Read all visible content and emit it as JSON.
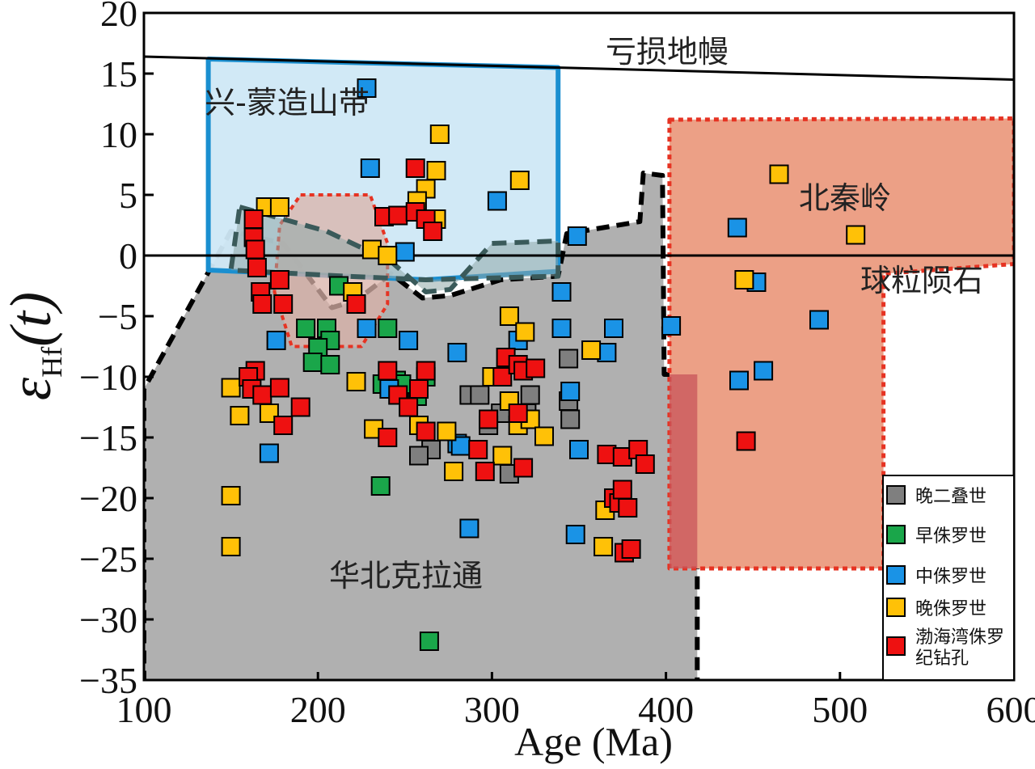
{
  "chart_data": {
    "type": "scatter",
    "xlabel": "Age (Ma)",
    "ylabel_symbol": "ε",
    "ylabel_subscript": "Hf",
    "ylabel_suffix": "(t)",
    "xlim": [
      100,
      600
    ],
    "ylim": [
      -35,
      20
    ],
    "xticks": [
      "100",
      "200",
      "300",
      "400",
      "500",
      "600"
    ],
    "yticks": [
      "20",
      "15",
      "10",
      "5",
      "0",
      "-5",
      "-10",
      "-15",
      "-20",
      "-25",
      "-30",
      "-35"
    ],
    "reference_lines": [
      {
        "label": "亏损地幔",
        "x": [
          100,
          600
        ],
        "y": [
          16.4,
          14.5
        ]
      },
      {
        "label": "球粒陨石",
        "x": [
          100,
          600
        ],
        "y": [
          0,
          0
        ]
      }
    ],
    "regions": [
      {
        "label": "华北克拉通",
        "color": "#b0b0b0",
        "border": "#000000",
        "polygon": [
          [
            100,
            -35.3
          ],
          [
            100,
            -11
          ],
          [
            150,
            2
          ],
          [
            180,
            1
          ],
          [
            208,
            -4.3
          ],
          [
            222,
            -3.7
          ],
          [
            242,
            -1.5
          ],
          [
            260,
            -3.5
          ],
          [
            276,
            -3.3
          ],
          [
            305,
            -2
          ],
          [
            338,
            -1.7
          ],
          [
            343,
            1.8
          ],
          [
            385,
            2.8
          ],
          [
            387,
            6.8
          ],
          [
            398,
            6.6
          ],
          [
            399,
            -9.8
          ],
          [
            418,
            -9.8
          ],
          [
            418,
            -35.3
          ]
        ]
      },
      {
        "label": "兴-蒙造山带",
        "color": "#cfe8f5",
        "border": "#1a8fd0",
        "polygon": [
          [
            137,
            16.2
          ],
          [
            338,
            15.5
          ],
          [
            338,
            -1.3
          ],
          [
            262,
            -2
          ],
          [
            215,
            -1.7
          ],
          [
            137,
            -1.2
          ]
        ]
      },
      {
        "label": "北秦岭",
        "color": "#eca086",
        "border": "#e63323",
        "polygon": [
          [
            402,
            11.2
          ],
          [
            600,
            11.3
          ],
          [
            600,
            -0.7
          ],
          [
            525,
            -1.5
          ],
          [
            525,
            -25.8
          ],
          [
            402,
            -25.8
          ]
        ]
      },
      {
        "label": "",
        "color": "#d9b2a8",
        "border": "#e63323",
        "polygon": [
          [
            190,
            5
          ],
          [
            230,
            5
          ],
          [
            240,
            1
          ],
          [
            240,
            -4
          ],
          [
            225,
            -7.5
          ],
          [
            185,
            -7.5
          ],
          [
            175,
            -3
          ],
          [
            178,
            2.5
          ]
        ]
      },
      {
        "label": "",
        "color": "#8fa8a8",
        "border": "#3a5a5a",
        "polygon": [
          [
            155,
            4
          ],
          [
            205,
            2
          ],
          [
            242,
            -0.5
          ],
          [
            262,
            -3
          ],
          [
            276,
            -2.8
          ],
          [
            300,
            1
          ],
          [
            338,
            1.2
          ],
          [
            338,
            -1.7
          ],
          [
            262,
            -2
          ],
          [
            215,
            -1.7
          ],
          [
            150,
            -1.2
          ]
        ]
      }
    ],
    "series": [
      {
        "name": "晚二叠世",
        "color": "#7f7f7f",
        "points": [
          [
            287,
            -11.5
          ],
          [
            293,
            -11.5
          ],
          [
            310,
            -12
          ],
          [
            320,
            -13
          ],
          [
            322,
            -11.5
          ],
          [
            265,
            -16
          ],
          [
            258,
            -16.5
          ],
          [
            344,
            -8.5
          ],
          [
            344,
            -12
          ],
          [
            345,
            -13.5
          ],
          [
            305,
            -13
          ],
          [
            310,
            -18
          ],
          [
            298,
            -14
          ]
        ]
      },
      {
        "name": "早侏罗世",
        "color": "#1aa64a",
        "points": [
          [
            212,
            -2.5
          ],
          [
            193,
            -6
          ],
          [
            205,
            -6
          ],
          [
            207,
            -7
          ],
          [
            200,
            -7.6
          ],
          [
            197,
            -8.8
          ],
          [
            207,
            -9
          ],
          [
            240,
            -6
          ],
          [
            237,
            -10.6
          ],
          [
            245,
            -10.3
          ],
          [
            252,
            -11
          ],
          [
            257,
            -11.6
          ],
          [
            262,
            -10
          ],
          [
            248,
            -10.6
          ],
          [
            236,
            -19
          ],
          [
            264,
            -31.8
          ]
        ]
      },
      {
        "name": "中侏罗世",
        "color": "#1a93e6",
        "points": [
          [
            228,
            13.8
          ],
          [
            230,
            7.2
          ],
          [
            250,
            0.3
          ],
          [
            303,
            4.5
          ],
          [
            349,
            1.6
          ],
          [
            340,
            -3
          ],
          [
            176,
            -7
          ],
          [
            228,
            -6
          ],
          [
            252,
            -7
          ],
          [
            280,
            -8
          ],
          [
            315,
            -7
          ],
          [
            340,
            -6
          ],
          [
            366,
            -8
          ],
          [
            370,
            -6
          ],
          [
            241,
            -11
          ],
          [
            280,
            -15.5
          ],
          [
            345,
            -11.2
          ],
          [
            350,
            -16
          ],
          [
            348,
            -23
          ],
          [
            403,
            -5.8
          ],
          [
            441,
            2.3
          ],
          [
            452,
            -2.2
          ],
          [
            488,
            -5.3
          ],
          [
            456,
            -9.5
          ],
          [
            442,
            -10.3
          ],
          [
            172,
            -16.3
          ],
          [
            287,
            -22.5
          ],
          [
            282,
            -15.7
          ]
        ]
      },
      {
        "name": "晚侏罗世",
        "color": "#ffc107",
        "points": [
          [
            270,
            10
          ],
          [
            268,
            7
          ],
          [
            262,
            5.5
          ],
          [
            257,
            4.5
          ],
          [
            316,
            6.2
          ],
          [
            170,
            4
          ],
          [
            178,
            4
          ],
          [
            231,
            0.5
          ],
          [
            220,
            -3
          ],
          [
            240,
            0
          ],
          [
            268,
            3
          ],
          [
            310,
            -5
          ],
          [
            319,
            -6.3
          ],
          [
            357,
            -7.8
          ],
          [
            150,
            -10.9
          ],
          [
            155,
            -13.2
          ],
          [
            172,
            -13
          ],
          [
            222,
            -10.4
          ],
          [
            232,
            -14.3
          ],
          [
            258,
            -14
          ],
          [
            274,
            -14.5
          ],
          [
            278,
            -17.8
          ],
          [
            300,
            -10
          ],
          [
            310,
            -12
          ],
          [
            315,
            -14
          ],
          [
            322,
            -13.5
          ],
          [
            330,
            -14.9
          ],
          [
            150,
            -19.8
          ],
          [
            150,
            -24
          ],
          [
            306,
            -16.5
          ],
          [
            365,
            -21
          ],
          [
            364,
            -24
          ],
          [
            465,
            6.7
          ],
          [
            445,
            -2
          ],
          [
            509,
            1.7
          ]
        ]
      },
      {
        "name": "渤海湾侏罗纪钻孔",
        "color": "#ee1111",
        "points": [
          [
            256,
            7.2
          ],
          [
            163,
            3
          ],
          [
            163,
            1.5
          ],
          [
            164,
            0.5
          ],
          [
            165,
            -1
          ],
          [
            167,
            -3
          ],
          [
            168,
            -4
          ],
          [
            178,
            -2
          ],
          [
            180,
            -4
          ],
          [
            222,
            -4
          ],
          [
            238,
            3.2
          ],
          [
            246,
            3.3
          ],
          [
            256,
            3.6
          ],
          [
            262,
            3
          ],
          [
            266,
            2
          ],
          [
            240,
            -9.5
          ],
          [
            246,
            -11.5
          ],
          [
            252,
            -12.5
          ],
          [
            258,
            -11
          ],
          [
            262,
            -9.5
          ],
          [
            240,
            -15
          ],
          [
            262,
            -14.5
          ],
          [
            164,
            -9.5
          ],
          [
            160,
            -10
          ],
          [
            162,
            -11
          ],
          [
            168,
            -11.5
          ],
          [
            190,
            -12.5
          ],
          [
            180,
            -14
          ],
          [
            178,
            -10.9
          ],
          [
            292,
            -16
          ],
          [
            306,
            -10
          ],
          [
            308,
            -8.4
          ],
          [
            315,
            -9
          ],
          [
            318,
            -9.5
          ],
          [
            315,
            -13
          ],
          [
            325,
            -9.3
          ],
          [
            298,
            -13.5
          ],
          [
            296,
            -17.8
          ],
          [
            318,
            -17.5
          ],
          [
            366,
            -16.4
          ],
          [
            375,
            -16.6
          ],
          [
            384,
            -16
          ],
          [
            388,
            -17.2
          ],
          [
            370,
            -20
          ],
          [
            373,
            -20.4
          ],
          [
            375,
            -19.3
          ],
          [
            378,
            -20.8
          ],
          [
            376,
            -24.5
          ],
          [
            380,
            -24.2
          ],
          [
            446,
            -15.3
          ]
        ]
      }
    ],
    "legend": {
      "placement": "bottom-right",
      "entries": [
        "晚二叠世",
        "早侏罗世",
        "中侏罗世",
        "晚侏罗世",
        "渤海湾侏罗纪钻孔"
      ]
    }
  }
}
